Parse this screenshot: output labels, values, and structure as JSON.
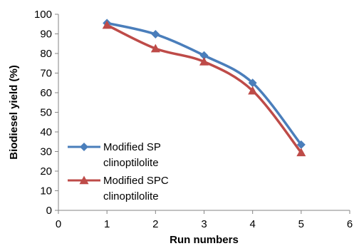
{
  "chart_data": {
    "type": "line",
    "xlabel": "Run numbers",
    "ylabel": "Biodiesel yield (%)",
    "xlim": [
      0,
      6
    ],
    "ylim": [
      0,
      100
    ],
    "x_ticks": [
      "0",
      "1",
      "2",
      "3",
      "4",
      "5",
      "6"
    ],
    "y_ticks": [
      "0",
      "10",
      "20",
      "30",
      "40",
      "50",
      "60",
      "70",
      "80",
      "90",
      "100"
    ],
    "grid": false,
    "legend_position": "bottom-left",
    "x": [
      1,
      2,
      3,
      4,
      5
    ],
    "series": [
      {
        "name_line1": "Modified SP",
        "name_line2": "clinoptilolite",
        "values": [
          95.5,
          89.8,
          79,
          65,
          33.5
        ],
        "color": "#4a7ebb",
        "marker": "diamond"
      },
      {
        "name_line1": "Modified SPC",
        "name_line2": "clinoptilolite",
        "values": [
          94.5,
          82.5,
          75.8,
          61,
          29.5
        ],
        "color": "#be4b48",
        "marker": "triangle"
      }
    ]
  }
}
